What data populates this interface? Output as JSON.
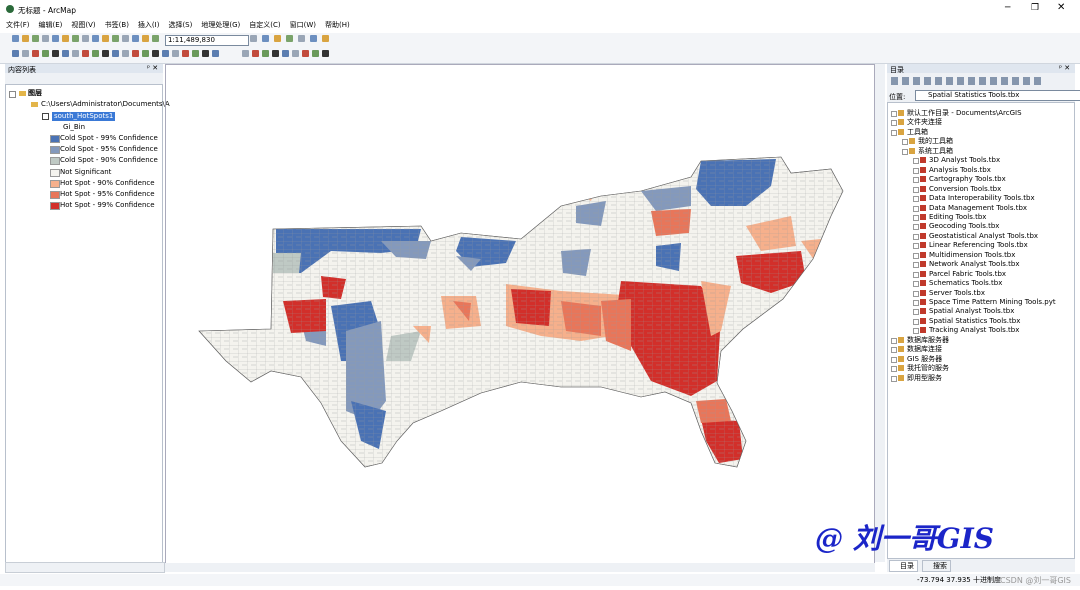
{
  "window": {
    "title": "无标题 - ArcMap"
  },
  "menu": [
    "文件(F)",
    "编辑(E)",
    "视图(V)",
    "书签(B)",
    "插入(I)",
    "选择(S)",
    "地理处理(G)",
    "自定义(C)",
    "窗口(W)",
    "帮助(H)"
  ],
  "toolbar": {
    "scale": "1:11,489,830"
  },
  "toc": {
    "title": "内容列表",
    "root": "图层",
    "path": "C:\\Users\\Administrator\\Documents\\A",
    "layer": "south_HotSpots1",
    "field": "Gi_Bin",
    "legend": [
      {
        "label": "Cold Spot - 99% Confidence",
        "color": "#4a72b4"
      },
      {
        "label": "Cold Spot - 95% Confidence",
        "color": "#8499bc"
      },
      {
        "label": "Cold Spot - 90% Confidence",
        "color": "#bfc9c4"
      },
      {
        "label": "Not Significant",
        "color": "#f4f3ee"
      },
      {
        "label": "Hot Spot - 90% Confidence",
        "color": "#f6b08c"
      },
      {
        "label": "Hot Spot - 95% Confidence",
        "color": "#e8765a"
      },
      {
        "label": "Hot Spot - 99% Confidence",
        "color": "#d22f2a"
      }
    ]
  },
  "catalog": {
    "title": "目录",
    "location_label": "位置:",
    "location": "Spatial Statistics Tools.tbx",
    "tree": [
      {
        "label": "默认工作目录 - Documents\\ArcGIS",
        "level": 0
      },
      {
        "label": "文件夹连接",
        "level": 0
      },
      {
        "label": "工具箱",
        "level": 0
      },
      {
        "label": "我的工具箱",
        "level": 1
      },
      {
        "label": "系统工具箱",
        "level": 1
      },
      {
        "label": "3D Analyst Tools.tbx",
        "level": 2
      },
      {
        "label": "Analysis Tools.tbx",
        "level": 2
      },
      {
        "label": "Cartography Tools.tbx",
        "level": 2
      },
      {
        "label": "Conversion Tools.tbx",
        "level": 2
      },
      {
        "label": "Data Interoperability Tools.tbx",
        "level": 2
      },
      {
        "label": "Data Management Tools.tbx",
        "level": 2
      },
      {
        "label": "Editing Tools.tbx",
        "level": 2
      },
      {
        "label": "Geocoding Tools.tbx",
        "level": 2
      },
      {
        "label": "Geostatistical Analyst Tools.tbx",
        "level": 2
      },
      {
        "label": "Linear Referencing Tools.tbx",
        "level": 2
      },
      {
        "label": "Multidimension Tools.tbx",
        "level": 2
      },
      {
        "label": "Network Analyst Tools.tbx",
        "level": 2
      },
      {
        "label": "Parcel Fabric Tools.tbx",
        "level": 2
      },
      {
        "label": "Schematics Tools.tbx",
        "level": 2
      },
      {
        "label": "Server Tools.tbx",
        "level": 2
      },
      {
        "label": "Space Time Pattern Mining Tools.pyt",
        "level": 2
      },
      {
        "label": "Spatial Analyst Tools.tbx",
        "level": 2
      },
      {
        "label": "Spatial Statistics Tools.tbx",
        "level": 2
      },
      {
        "label": "Tracking Analyst Tools.tbx",
        "level": 2
      },
      {
        "label": "数据库服务器",
        "level": 0
      },
      {
        "label": "数据库连接",
        "level": 0
      },
      {
        "label": "GIS 服务器",
        "level": 0
      },
      {
        "label": "我托管的服务",
        "level": 0
      },
      {
        "label": "即用型服务",
        "level": 0
      }
    ],
    "tabs": [
      "目录",
      "搜索"
    ]
  },
  "status": {
    "coords": "-73.794  37.935 十进制度"
  },
  "watermark": {
    "main": "@ 刘一哥GIS",
    "csdn": "CSDN @刘一哥GIS"
  }
}
